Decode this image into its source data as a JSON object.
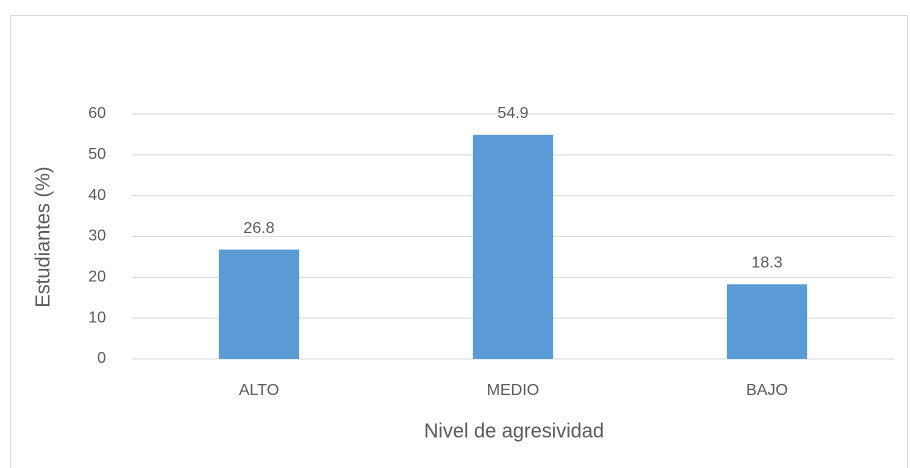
{
  "chart_data": {
    "type": "bar",
    "categories": [
      "ALTO",
      "MEDIO",
      "BAJO"
    ],
    "values": [
      26.8,
      54.9,
      18.3
    ],
    "color": "#5b9bd5",
    "xlabel": "Nivel de agresividad",
    "ylabel": "Estudiantes (%)",
    "ylim": [
      0,
      60
    ],
    "yticks": [
      0,
      10,
      20,
      30,
      40,
      50,
      60
    ],
    "grid": true
  }
}
